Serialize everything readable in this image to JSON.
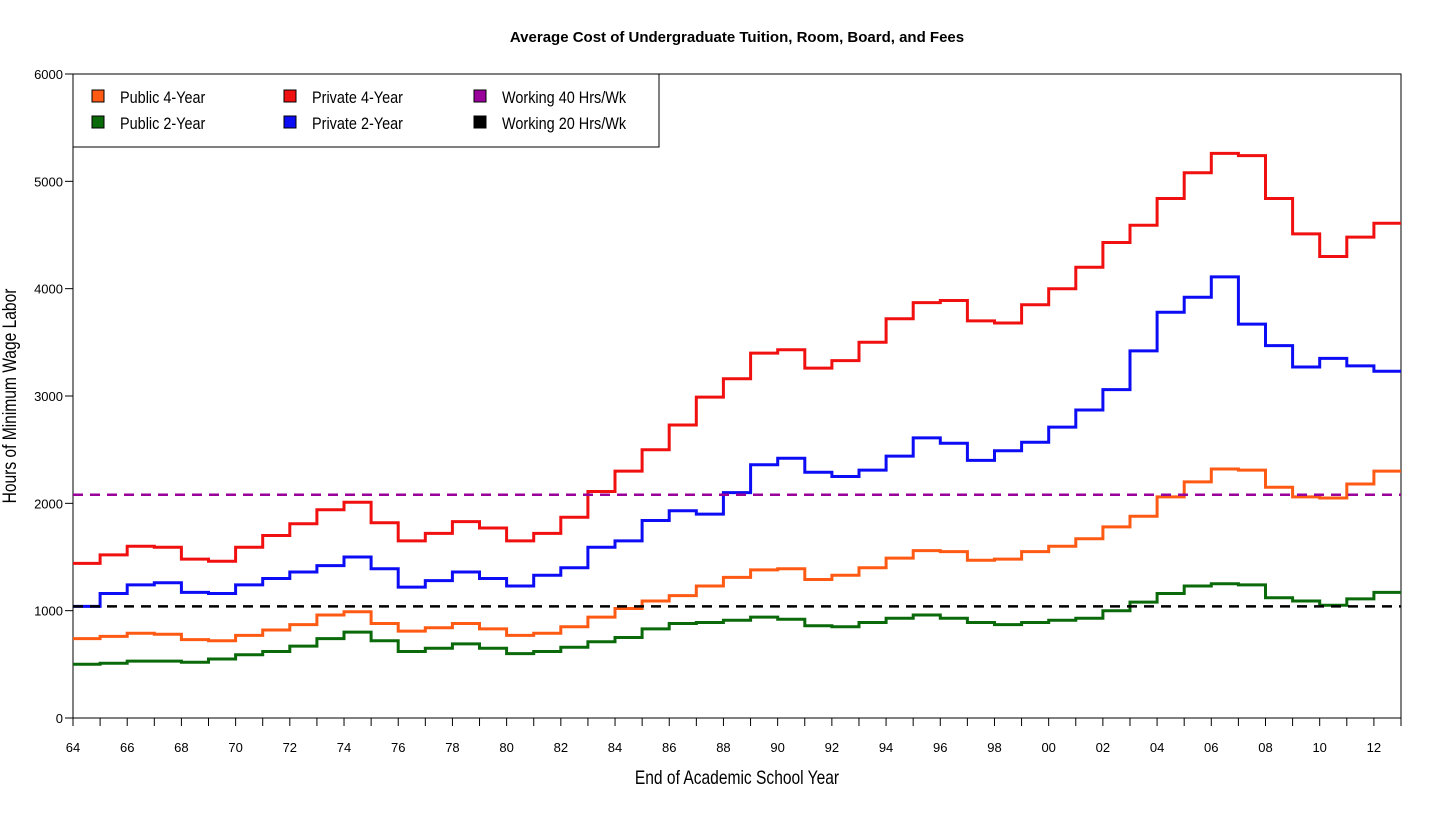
{
  "chart_data": {
    "type": "line",
    "title": "Average Cost of Undergraduate Tuition, Room, Board, and Fees",
    "xlabel": "End of Academic School Year",
    "ylabel": "Hours of Minimum Wage Labor",
    "xlim": [
      1964,
      2013
    ],
    "ylim": [
      0,
      6000
    ],
    "x_ticks": [
      1964,
      1966,
      1968,
      1970,
      1972,
      1974,
      1976,
      1978,
      1980,
      1982,
      1984,
      1986,
      1988,
      1990,
      1992,
      1994,
      1996,
      1998,
      2000,
      2002,
      2004,
      2006,
      2008,
      2010,
      2012
    ],
    "x_tick_labels": [
      "64",
      "66",
      "68",
      "70",
      "72",
      "74",
      "76",
      "78",
      "80",
      "82",
      "84",
      "86",
      "88",
      "90",
      "92",
      "94",
      "96",
      "98",
      "00",
      "02",
      "04",
      "06",
      "08",
      "10",
      "12"
    ],
    "y_ticks": [
      0,
      1000,
      2000,
      3000,
      4000,
      5000,
      6000
    ],
    "y_tick_labels": [
      "0",
      "1000",
      "2000",
      "3000",
      "4000",
      "5000",
      "6000"
    ],
    "grid": false,
    "legend_position": "top-left",
    "step": true,
    "x": [
      1964,
      1965,
      1966,
      1967,
      1968,
      1969,
      1970,
      1971,
      1972,
      1973,
      1974,
      1975,
      1976,
      1977,
      1978,
      1979,
      1980,
      1981,
      1982,
      1983,
      1984,
      1985,
      1986,
      1987,
      1988,
      1989,
      1990,
      1991,
      1992,
      1993,
      1994,
      1995,
      1996,
      1997,
      1998,
      1999,
      2000,
      2001,
      2002,
      2003,
      2004,
      2005,
      2006,
      2007,
      2008,
      2009,
      2010,
      2011,
      2012
    ],
    "series": [
      {
        "name": "Public 4-Year",
        "color": "#ff5a14",
        "values": [
          740,
          760,
          790,
          780,
          730,
          720,
          770,
          820,
          870,
          960,
          990,
          880,
          810,
          840,
          880,
          830,
          770,
          790,
          850,
          940,
          1020,
          1090,
          1140,
          1230,
          1310,
          1380,
          1390,
          1290,
          1330,
          1400,
          1490,
          1560,
          1550,
          1470,
          1480,
          1550,
          1600,
          1670,
          1780,
          1880,
          2060,
          2200,
          2320,
          2310,
          2150,
          2060,
          2050,
          2180,
          2300
        ]
      },
      {
        "name": "Public 2-Year",
        "color": "#0a6a0a",
        "values": [
          500,
          510,
          530,
          530,
          520,
          550,
          590,
          620,
          670,
          740,
          800,
          720,
          620,
          650,
          690,
          650,
          600,
          620,
          660,
          710,
          750,
          830,
          880,
          890,
          910,
          940,
          920,
          860,
          850,
          890,
          930,
          960,
          930,
          890,
          870,
          890,
          910,
          930,
          1000,
          1080,
          1160,
          1230,
          1250,
          1240,
          1120,
          1090,
          1050,
          1110,
          1170
        ]
      },
      {
        "name": "Private 4-Year",
        "color": "#f01010",
        "values": [
          1440,
          1520,
          1600,
          1590,
          1480,
          1460,
          1590,
          1700,
          1810,
          1940,
          2010,
          1820,
          1650,
          1720,
          1830,
          1770,
          1650,
          1720,
          1870,
          2110,
          2300,
          2500,
          2730,
          2990,
          3160,
          3400,
          3430,
          3260,
          3330,
          3500,
          3720,
          3870,
          3890,
          3700,
          3680,
          3850,
          4000,
          4200,
          4430,
          4590,
          4840,
          5080,
          5260,
          5240,
          4840,
          4510,
          4300,
          4480,
          4610
        ]
      },
      {
        "name": "Private 2-Year",
        "color": "#0c0cf5",
        "values": [
          1040,
          1160,
          1240,
          1260,
          1170,
          1160,
          1240,
          1300,
          1360,
          1420,
          1500,
          1390,
          1220,
          1280,
          1360,
          1300,
          1230,
          1330,
          1400,
          1590,
          1650,
          1840,
          1930,
          1900,
          2100,
          2360,
          2420,
          2290,
          2250,
          2310,
          2440,
          2610,
          2560,
          2400,
          2490,
          2570,
          2710,
          2870,
          3060,
          3420,
          3780,
          3920,
          4110,
          3670,
          3470,
          3270,
          3350,
          3280,
          3230
        ]
      },
      {
        "name": "Working 40 Hrs/Wk",
        "color": "#9a009a",
        "constant": 2080
      },
      {
        "name": "Working 20 Hrs/Wk",
        "color": "#000000",
        "constant": 1040
      }
    ]
  }
}
